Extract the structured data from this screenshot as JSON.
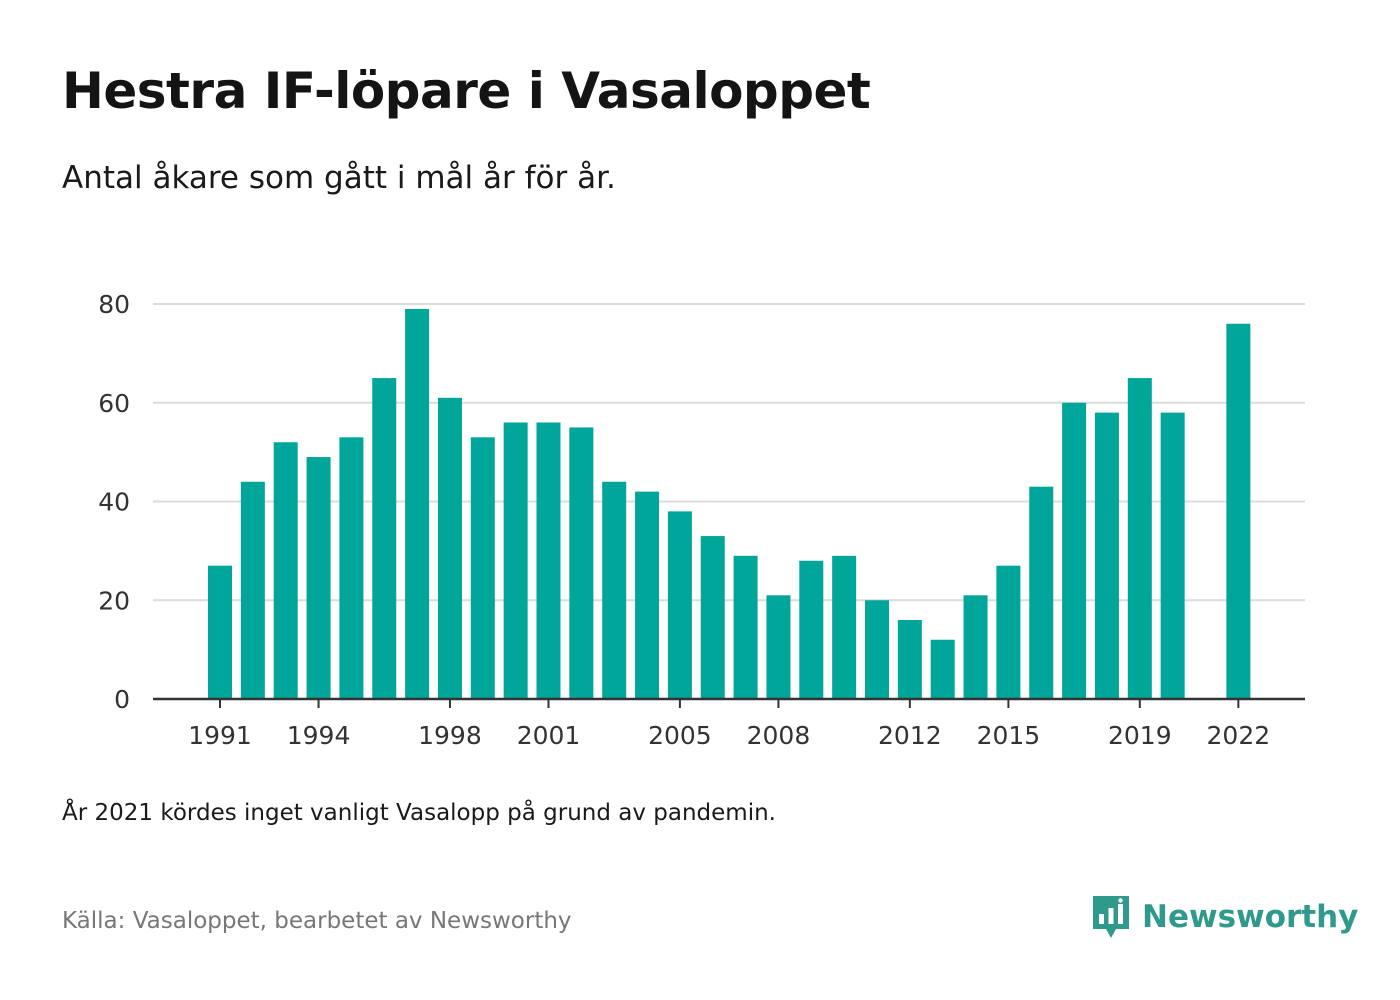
{
  "colors": {
    "bar": "#00a699",
    "grid": "#dcdcdc",
    "axis": "#333333",
    "brand": "#2f9a8c"
  },
  "header": {
    "title": "Hestra IF-löpare i Vasaloppet",
    "subtitle": "Antal åkare som gått i mål år för år."
  },
  "footer": {
    "note": "År 2021 kördes inget vanligt Vasalopp på grund av pandemin.",
    "source": "Källa: Vasaloppet, bearbetet av Newsworthy",
    "brand": "Newsworthy",
    "brand_icon": "newsworthy-logo-icon"
  },
  "chart_data": {
    "type": "bar",
    "categories": [
      1991,
      1992,
      1993,
      1994,
      1995,
      1996,
      1997,
      1998,
      1999,
      2000,
      2001,
      2002,
      2003,
      2004,
      2005,
      2006,
      2007,
      2008,
      2009,
      2010,
      2011,
      2012,
      2013,
      2014,
      2015,
      2016,
      2017,
      2018,
      2019,
      2020,
      2021,
      2022
    ],
    "values": [
      27,
      44,
      52,
      49,
      53,
      65,
      79,
      61,
      53,
      56,
      56,
      55,
      44,
      42,
      38,
      33,
      29,
      21,
      28,
      29,
      20,
      16,
      12,
      21,
      27,
      43,
      60,
      58,
      65,
      58,
      null,
      76
    ],
    "x_ticks": [
      "1991",
      "1994",
      "1998",
      "2001",
      "2005",
      "2008",
      "2012",
      "2015",
      "2019",
      "2022"
    ],
    "y_ticks": [
      "0",
      "20",
      "40",
      "60",
      "80"
    ],
    "ylim": [
      0,
      80
    ],
    "grid": true,
    "xlabel": "",
    "ylabel": ""
  }
}
